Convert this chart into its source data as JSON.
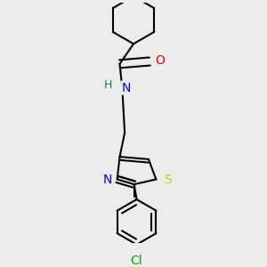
{
  "bg_color": "#ececec",
  "bond_color": "#000000",
  "bond_width": 1.5,
  "atom_colors": {
    "O": "#ff0000",
    "N": "#0000ff",
    "S": "#cccc00",
    "Cl": "#00aa00",
    "C": "#000000",
    "H": "#008080"
  },
  "font_size": 9,
  "fig_size": [
    3.0,
    3.0
  ],
  "dpi": 100
}
